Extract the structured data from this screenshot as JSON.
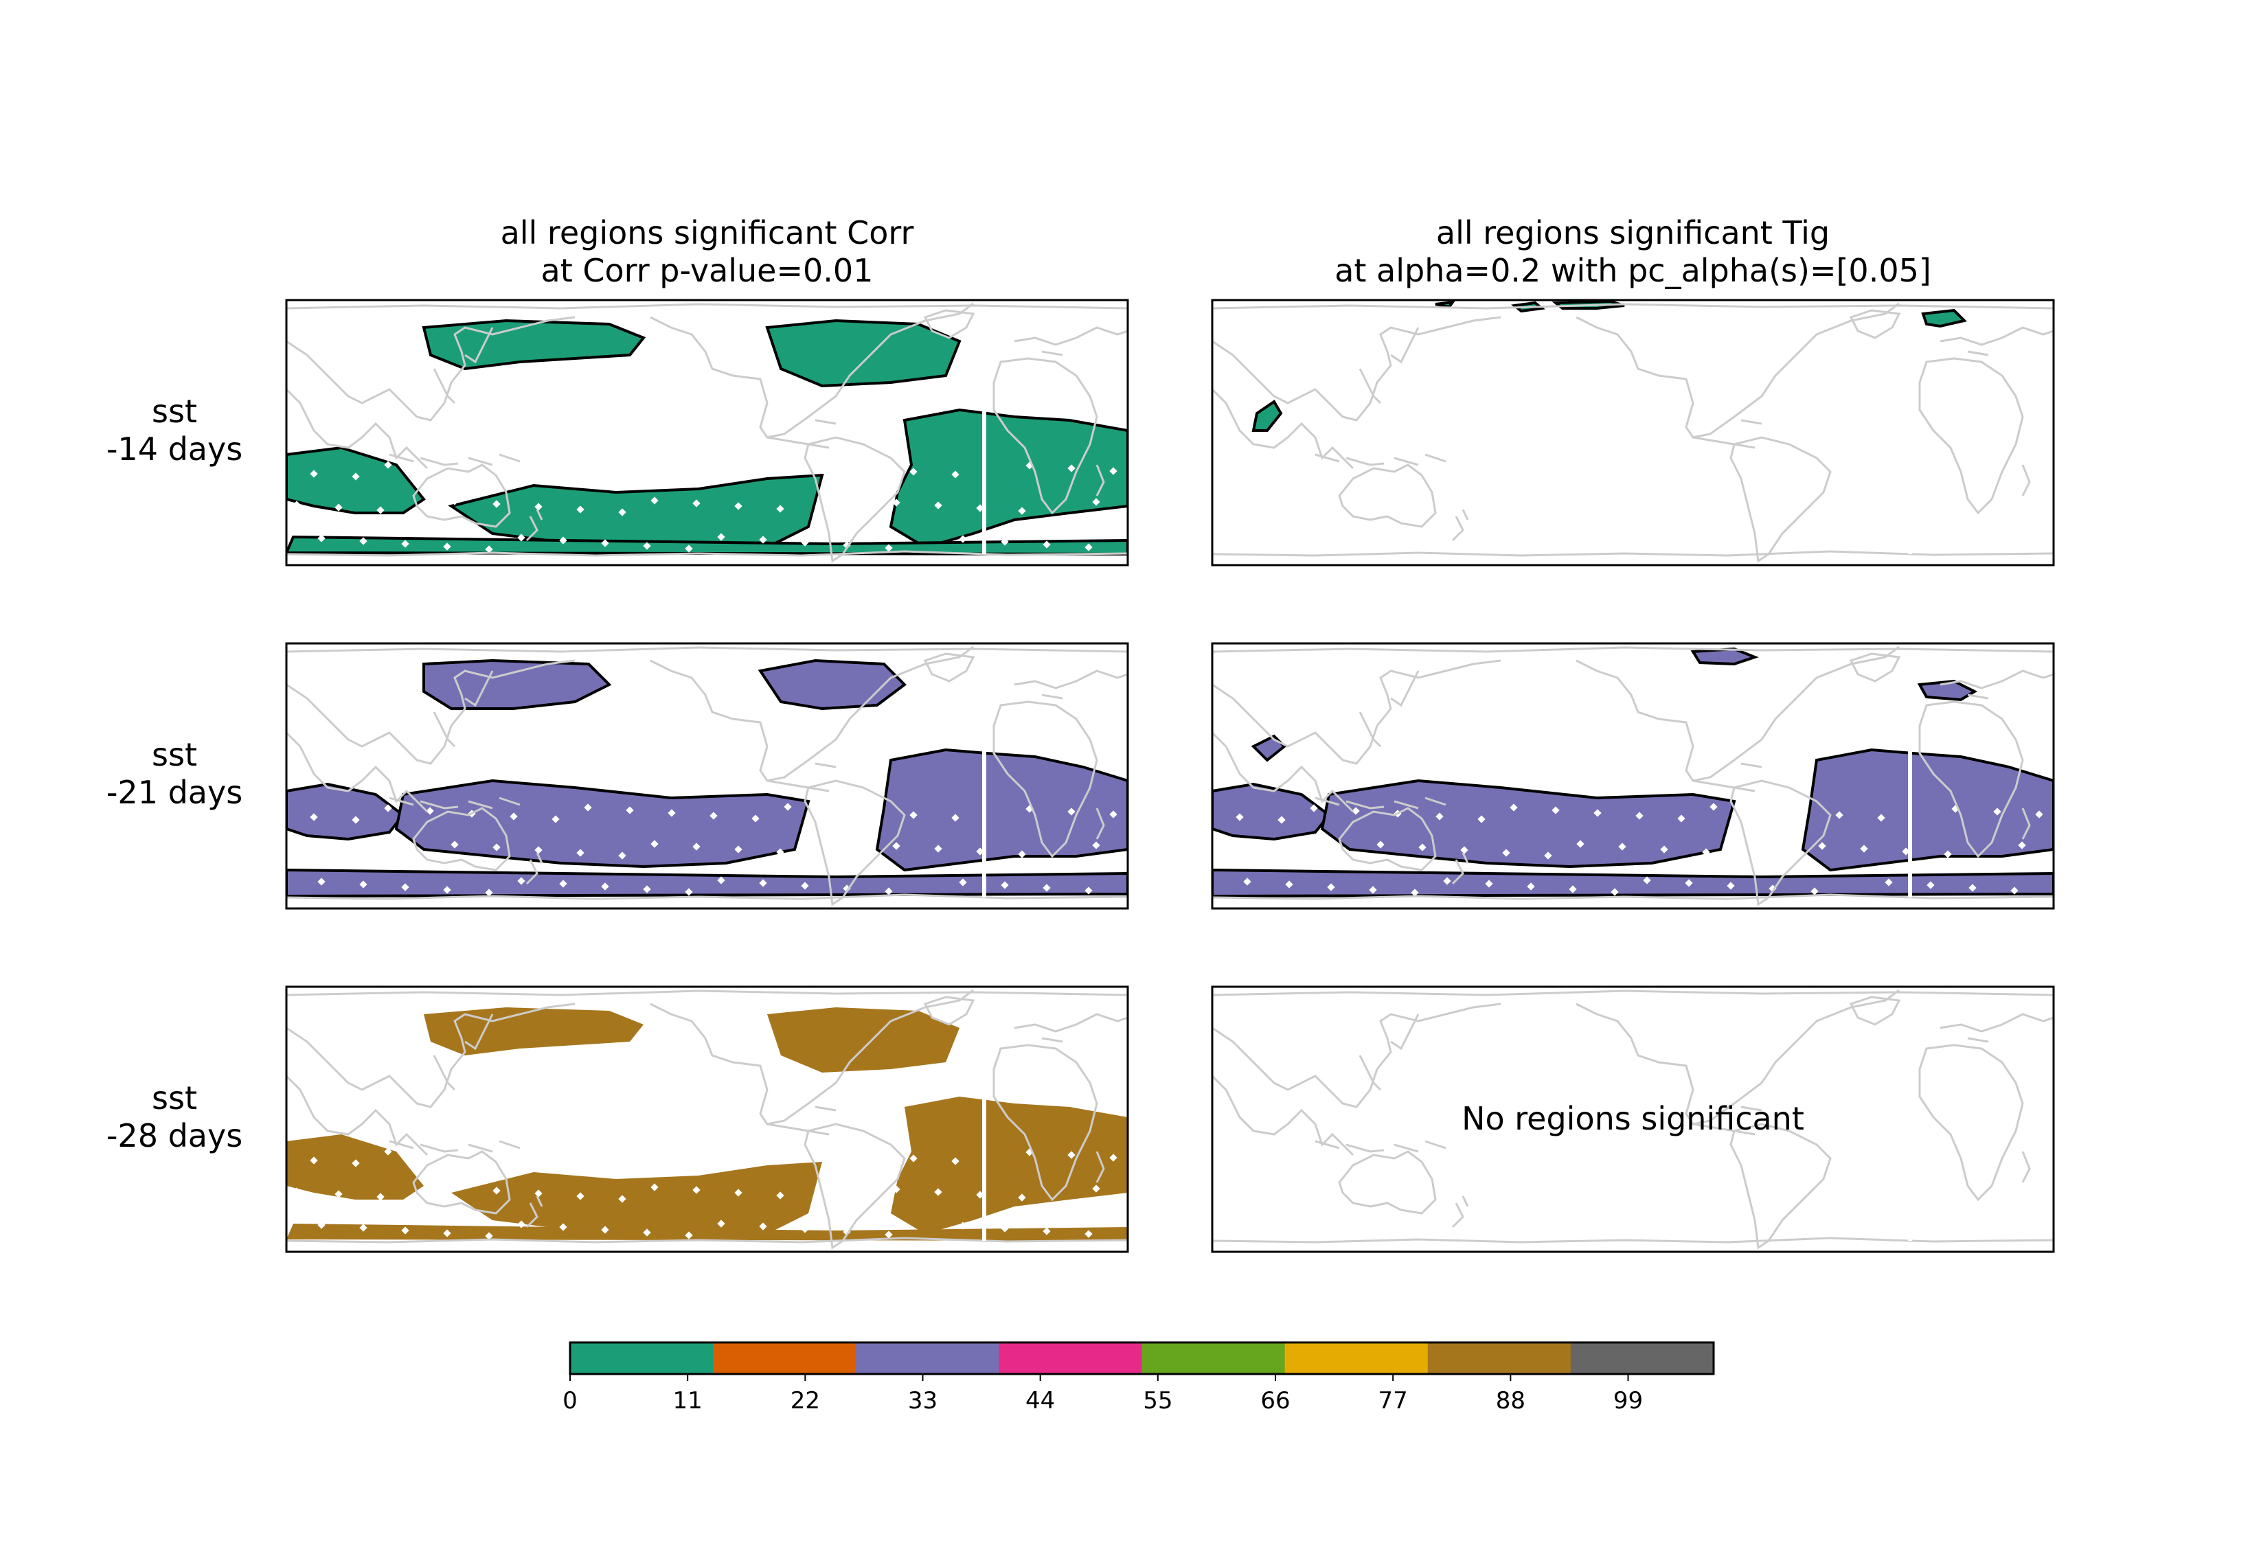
{
  "columns": [
    {
      "title_line1": "all regions significant Corr",
      "title_line2": "at Corr p-value=0.01"
    },
    {
      "title_line1": "all regions significant Tig",
      "title_line2": "at alpha=0.2 with pc_alpha(s)=[0.05]"
    }
  ],
  "rows": [
    {
      "var": "sst",
      "lag": "-14 days"
    },
    {
      "var": "sst",
      "lag": "-21 days"
    },
    {
      "var": "sst",
      "lag": "-28 days"
    }
  ],
  "no_regions_text": "No regions significant",
  "colorbar": {
    "colors": [
      "#1b9e77",
      "#d95f02",
      "#7570b3",
      "#e7298a",
      "#66a61e",
      "#e6ab02",
      "#a6761d",
      "#666666"
    ],
    "min": 0,
    "max": 107,
    "ticks": [
      "0",
      "11",
      "22",
      "33",
      "44",
      "55",
      "66",
      "77",
      "88",
      "99"
    ]
  },
  "colors": {
    "land_outline": "#cccccc",
    "frame": "#000000",
    "region_contour": "#000000"
  },
  "maps": [
    {
      "row": 0,
      "col": 0,
      "color": "#1b9e77",
      "empty": false,
      "contours": true
    },
    {
      "row": 0,
      "col": 1,
      "color": "#1b9e77",
      "empty": false,
      "contours": true
    },
    {
      "row": 1,
      "col": 0,
      "color": "#7570b3",
      "empty": false,
      "contours": true
    },
    {
      "row": 1,
      "col": 1,
      "color": "#7570b3",
      "empty": false,
      "contours": true
    },
    {
      "row": 2,
      "col": 0,
      "color": "#a6761d",
      "empty": false,
      "contours": false
    },
    {
      "row": 2,
      "col": 1,
      "color": "",
      "empty": true,
      "contours": false
    }
  ]
}
